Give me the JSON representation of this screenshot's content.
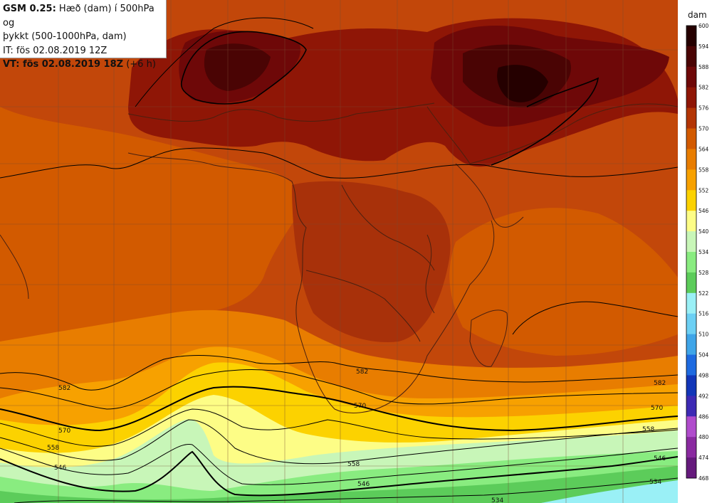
{
  "info": {
    "model": "GSM 0.25:",
    "description_line1": " Hæð (dam) í 500hPa og",
    "description_line2": "þykkt (500-1000hPa, dam)",
    "initial_time": "IT: fös 02.08.2019 12Z",
    "valid_label": "VT: fös 02.08.2019 18Z",
    "valid_offset": " (+6 h)"
  },
  "legend": {
    "unit": "dam",
    "levels": [
      "600",
      "594",
      "588",
      "582",
      "576",
      "570",
      "564",
      "558",
      "552",
      "546",
      "540",
      "534",
      "528",
      "522",
      "516",
      "510",
      "504",
      "498",
      "492",
      "486",
      "480",
      "474",
      "468"
    ],
    "colors": [
      "#250000",
      "#4a0404",
      "#6e0808",
      "#8f1606",
      "#b33505",
      "#d25a00",
      "#e87d00",
      "#f7a100",
      "#fcd200",
      "#fdfd86",
      "#c8f6b8",
      "#89ec80",
      "#5ccc5a",
      "#9af0f6",
      "#6cd0f4",
      "#3fa5e8",
      "#1e6ae0",
      "#1236b8",
      "#3d2ab4",
      "#b04ccc",
      "#8a2aa0",
      "#651a7c",
      "#3e0a56"
    ]
  },
  "contour_labels": [
    "582",
    "570",
    "558",
    "546",
    "582",
    "570",
    "558",
    "546",
    "534",
    "582",
    "570",
    "558",
    "546",
    "534"
  ],
  "colors": {
    "land_outline": "#4a2010",
    "isoline": "#000000",
    "grid": "#7a4a32"
  }
}
